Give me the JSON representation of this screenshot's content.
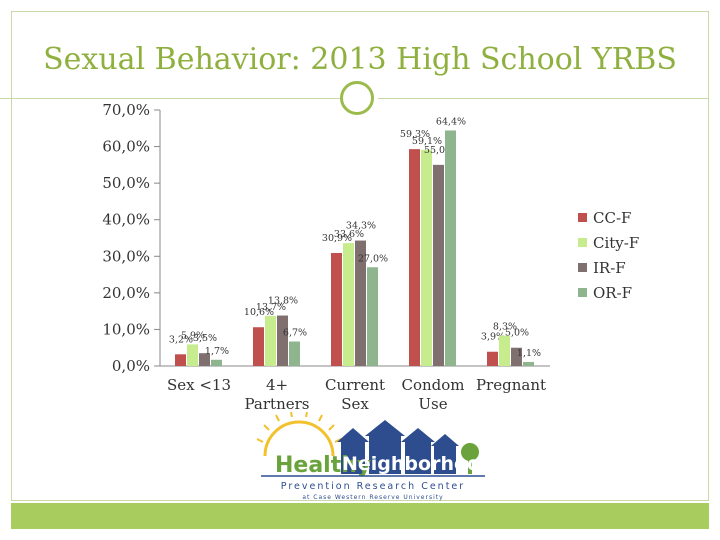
{
  "title": "Sexual Behavior: 2013 High School YRBS",
  "colors": {
    "accent": "#9bbb4c",
    "footer": "#a9cc5f"
  },
  "chart_data": {
    "type": "bar",
    "title": "Sexual Behavior: 2013 High School YRBS",
    "categories": [
      "Sex <13",
      "4+ Partners",
      "Current Sex",
      "Condom Use",
      "Pregnant"
    ],
    "category_lines": [
      [
        "Sex <13"
      ],
      [
        "4+",
        "Partners"
      ],
      [
        "Current",
        "Sex"
      ],
      [
        "Condom",
        "Use"
      ],
      [
        "Pregnant"
      ]
    ],
    "series": [
      {
        "name": "CC-F",
        "color": "#c0504d",
        "values": [
          3.2,
          10.6,
          30.9,
          59.3,
          3.9
        ],
        "labels": [
          "3,2%",
          "10,6%",
          "30,9%",
          "59,3%",
          "3,9%"
        ]
      },
      {
        "name": "City-F",
        "color": "#c6ec8e",
        "values": [
          5.9,
          13.7,
          33.6,
          59.1,
          8.3
        ],
        "labels": [
          "5,9%",
          "13,7%",
          "33,6%",
          "59,1%",
          "8,3%"
        ]
      },
      {
        "name": "IR-F",
        "color": "#7f6f6f",
        "values": [
          3.5,
          13.8,
          34.3,
          55.0,
          5.0
        ],
        "labels": [
          "3,5%",
          "13,8%",
          "34,3%",
          "55,0%",
          "5,0%"
        ]
      },
      {
        "name": "OR-F",
        "color": "#8fb58e",
        "values": [
          1.7,
          6.7,
          27.0,
          64.4,
          1.1
        ],
        "labels": [
          "1,7%",
          "6,7%",
          "27,0%",
          "64,4%",
          "1,1%"
        ]
      }
    ],
    "ylim": [
      0,
      70
    ],
    "yticks": [
      0,
      10,
      20,
      30,
      40,
      50,
      60,
      70
    ],
    "ytick_labels": [
      "0,0%",
      "10,0%",
      "20,0%",
      "30,0%",
      "40,0%",
      "50,0%",
      "60,0%",
      "70,0%"
    ],
    "grid": false,
    "legend": "right"
  },
  "logo": {
    "word1": "Healthy",
    "word2": "Neighborhoods",
    "line1": "Prevention Research Center",
    "line2": "at Case Western Reserve University"
  }
}
